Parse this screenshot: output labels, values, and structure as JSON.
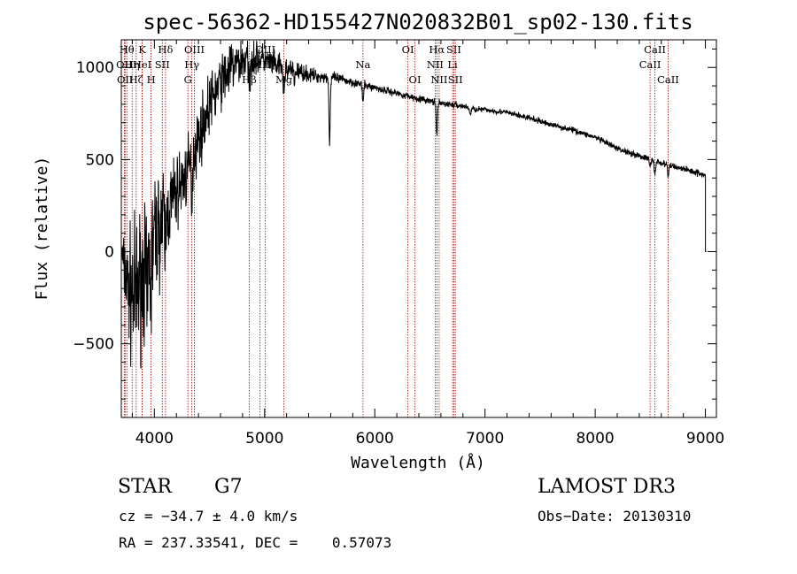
{
  "chart_data": {
    "type": "line",
    "title": "spec-56362-HD155427N020832B01_sp02-130.fits",
    "xlabel": "Wavelength (Å)",
    "ylabel": "Flux (relative)",
    "xlim": [
      3700,
      9100
    ],
    "ylim": [
      -900,
      1150
    ],
    "xticks": [
      4000,
      5000,
      6000,
      7000,
      8000,
      9000
    ],
    "xtick_labels": [
      "4000",
      "5000",
      "6000",
      "7000",
      "8000",
      "9000"
    ],
    "yticks": [
      -500,
      0,
      500,
      1000
    ],
    "ytick_labels": [
      "−500",
      "0",
      "500",
      "1000"
    ],
    "continuum": [
      [
        3700,
        0
      ],
      [
        3760,
        -200
      ],
      [
        3820,
        -250
      ],
      [
        3880,
        -150
      ],
      [
        3950,
        0
      ],
      [
        4000,
        80
      ],
      [
        4100,
        200
      ],
      [
        4200,
        320
      ],
      [
        4300,
        430
      ],
      [
        4400,
        620
      ],
      [
        4500,
        800
      ],
      [
        4600,
        920
      ],
      [
        4700,
        1000
      ],
      [
        4800,
        1040
      ],
      [
        4900,
        1060
      ],
      [
        5000,
        1040
      ],
      [
        5100,
        1010
      ],
      [
        5200,
        990
      ],
      [
        5300,
        980
      ],
      [
        5400,
        960
      ],
      [
        5500,
        950
      ],
      [
        5600,
        945
      ],
      [
        5700,
        935
      ],
      [
        5800,
        920
      ],
      [
        5900,
        905
      ],
      [
        6000,
        890
      ],
      [
        6200,
        860
      ],
      [
        6400,
        830
      ],
      [
        6600,
        805
      ],
      [
        6800,
        790
      ],
      [
        6900,
        775
      ],
      [
        7000,
        770
      ],
      [
        7200,
        755
      ],
      [
        7400,
        725
      ],
      [
        7600,
        690
      ],
      [
        7800,
        660
      ],
      [
        8000,
        620
      ],
      [
        8200,
        560
      ],
      [
        8400,
        520
      ],
      [
        8600,
        480
      ],
      [
        8800,
        450
      ],
      [
        8980,
        420
      ]
    ],
    "noise_bands": [
      [
        3700,
        80
      ],
      [
        3800,
        300
      ],
      [
        4000,
        260
      ],
      [
        4200,
        150
      ],
      [
        4500,
        120
      ],
      [
        4800,
        100
      ],
      [
        5000,
        60
      ],
      [
        5500,
        25
      ],
      [
        6000,
        16
      ],
      [
        7000,
        12
      ],
      [
        8000,
        12
      ],
      [
        9000,
        14
      ]
    ],
    "absorption_features": [
      {
        "x": 3934,
        "depth": 350
      },
      {
        "x": 3968,
        "depth": 300
      },
      {
        "x": 4101,
        "depth": 180
      },
      {
        "x": 4340,
        "depth": 200
      },
      {
        "x": 4861,
        "depth": 160
      },
      {
        "x": 5175,
        "depth": 150
      },
      {
        "x": 5270,
        "depth": 60
      },
      {
        "x": 5590,
        "depth": 350
      },
      {
        "x": 5893,
        "depth": 90
      },
      {
        "x": 6563,
        "depth": 180
      },
      {
        "x": 6867,
        "depth": 40
      },
      {
        "x": 8498,
        "depth": 40
      },
      {
        "x": 8542,
        "depth": 70
      },
      {
        "x": 8662,
        "depth": 60
      }
    ],
    "end_drop": {
      "x": 9000,
      "flux": 0
    },
    "line_markers": [
      {
        "x": 3750,
        "label": "Hθ",
        "row": 0
      },
      {
        "x": 3889,
        "label": "K",
        "row": 0
      },
      {
        "x": 4101,
        "label": "Hδ",
        "row": 0
      },
      {
        "x": 4363,
        "label": "OIII",
        "row": 0
      },
      {
        "x": 5007,
        "label": "OIII",
        "row": 0
      },
      {
        "x": 6300,
        "label": "OI",
        "row": 0
      },
      {
        "x": 6563,
        "label": "Hα",
        "row": 0
      },
      {
        "x": 6717,
        "label": "SII",
        "row": 0
      },
      {
        "x": 8542,
        "label": "CaII",
        "row": 0
      },
      {
        "x": 3727,
        "label": "OII",
        "row": 1
      },
      {
        "x": 3798,
        "label": "Hη",
        "row": 1
      },
      {
        "x": 3889,
        "label": "HeI",
        "row": 1
      },
      {
        "x": 4072,
        "label": "SII",
        "row": 1
      },
      {
        "x": 4340,
        "label": "Hγ",
        "row": 1
      },
      {
        "x": 4959,
        "label": "OIII",
        "row": 1
      },
      {
        "x": 5893,
        "label": "Na",
        "row": 1
      },
      {
        "x": 6548,
        "label": "NII",
        "row": 1
      },
      {
        "x": 6706,
        "label": "Li",
        "row": 1
      },
      {
        "x": 8498,
        "label": "CaII",
        "row": 1
      },
      {
        "x": 3734,
        "label": "OII",
        "row": 2
      },
      {
        "x": 3835,
        "label": "Hζ",
        "row": 2
      },
      {
        "x": 3970,
        "label": "H",
        "row": 2
      },
      {
        "x": 4304,
        "label": "G",
        "row": 2
      },
      {
        "x": 4861,
        "label": "Hβ",
        "row": 2
      },
      {
        "x": 5175,
        "label": "Mg",
        "row": 2
      },
      {
        "x": 6364,
        "label": "OI",
        "row": 2
      },
      {
        "x": 6584,
        "label": "NII",
        "row": 2
      },
      {
        "x": 6731,
        "label": "SII",
        "row": 2
      },
      {
        "x": 8662,
        "label": "CaII",
        "row": 2
      }
    ]
  },
  "info": {
    "class_label": "STAR",
    "subclass": "G7",
    "survey": "LAMOST DR3",
    "cz": "cz = −34.7 ± 4.0 km/s",
    "obs_date": "Obs−Date: 20130310",
    "coords": "RA = 237.33541, DEC =    0.57073"
  },
  "colors": {
    "spectrum": "#000000",
    "marker_line": "#b00000",
    "text": "#000000"
  }
}
